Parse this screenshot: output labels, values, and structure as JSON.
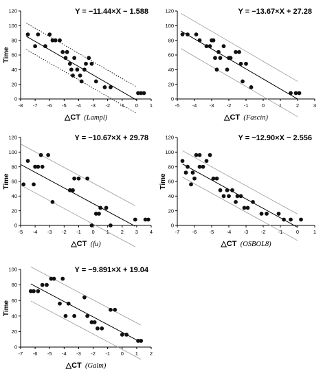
{
  "chart_data": [
    {
      "type": "scatter",
      "equation": "Y = −11.44×X − 1.588",
      "ylabel": "Time",
      "xlabel_prefix": "△CT",
      "xlabel_gene": "Lampl",
      "xlim": [
        -8,
        1
      ],
      "ylim": [
        0,
        120
      ],
      "xticks": [
        -8,
        -7,
        -6,
        -5,
        -4,
        -3,
        -2,
        -1,
        0,
        1
      ],
      "yticks": [
        0,
        20,
        40,
        60,
        80,
        100,
        120
      ],
      "band": "dotted",
      "points": [
        [
          -7.5,
          88
        ],
        [
          -7,
          72
        ],
        [
          -6.8,
          88
        ],
        [
          -6.3,
          72
        ],
        [
          -6,
          88
        ],
        [
          -5.8,
          80
        ],
        [
          -5.6,
          80
        ],
        [
          -5.3,
          80
        ],
        [
          -5.1,
          64
        ],
        [
          -4.9,
          56
        ],
        [
          -4.8,
          64
        ],
        [
          -4.6,
          48
        ],
        [
          -4.5,
          40
        ],
        [
          -4.4,
          32
        ],
        [
          -4.3,
          56
        ],
        [
          -4.1,
          40
        ],
        [
          -3.9,
          32
        ],
        [
          -3.8,
          24
        ],
        [
          -3.6,
          40
        ],
        [
          -3.5,
          48
        ],
        [
          -3.3,
          56
        ],
        [
          -3.1,
          48
        ],
        [
          -2.8,
          24
        ],
        [
          -2.2,
          16
        ],
        [
          -1.8,
          16
        ],
        [
          0.1,
          8
        ],
        [
          0.3,
          8
        ],
        [
          0.5,
          8
        ]
      ],
      "line": {
        "slope": -11.44,
        "intercept": -1.588,
        "x": [
          -7.6,
          0
        ]
      },
      "band_offset": 18
    },
    {
      "type": "scatter",
      "equation": "Y = −13.67×X + 27.28",
      "ylabel": "",
      "xlabel_prefix": "△CT",
      "xlabel_gene": "Fascin",
      "xlim": [
        -5,
        3
      ],
      "ylim": [
        0,
        120
      ],
      "xticks": [
        -5,
        -4,
        -3,
        -2,
        -1,
        0,
        1,
        2,
        3
      ],
      "yticks": [
        0,
        20,
        40,
        60,
        80,
        100,
        120
      ],
      "band": "solid",
      "points": [
        [
          -4.7,
          88
        ],
        [
          -4.4,
          88
        ],
        [
          -3.9,
          88
        ],
        [
          -3.7,
          80
        ],
        [
          -3.3,
          72
        ],
        [
          -3.1,
          72
        ],
        [
          -3,
          80
        ],
        [
          -2.9,
          80
        ],
        [
          -2.8,
          56
        ],
        [
          -2.7,
          40
        ],
        [
          -2.6,
          64
        ],
        [
          -2.5,
          56
        ],
        [
          -2.3,
          72
        ],
        [
          -2.1,
          40
        ],
        [
          -2,
          56
        ],
        [
          -1.9,
          56
        ],
        [
          -1.6,
          64
        ],
        [
          -1.4,
          64
        ],
        [
          -1.3,
          48
        ],
        [
          -1.2,
          24
        ],
        [
          -1,
          48
        ],
        [
          -0.7,
          16
        ],
        [
          1.6,
          8
        ],
        [
          1.9,
          8
        ],
        [
          2.1,
          8
        ]
      ],
      "line": {
        "slope": -13.67,
        "intercept": 27.28,
        "x": [
          -4.8,
          2.0
        ]
      },
      "band_offset": 24
    },
    {
      "type": "scatter",
      "equation": "Y = −10.67×X + 29.78",
      "ylabel": "Time",
      "xlabel_prefix": "△CT",
      "xlabel_gene": "fu",
      "xlim": [
        -5,
        4
      ],
      "ylim": [
        0,
        120
      ],
      "xticks": [
        -5,
        -4,
        -3,
        -2,
        -1,
        0,
        1,
        2,
        3,
        4
      ],
      "yticks": [
        0,
        20,
        40,
        60,
        80,
        100,
        120
      ],
      "band": "solid",
      "points": [
        [
          -4.8,
          56
        ],
        [
          -4.5,
          88
        ],
        [
          -4.1,
          56
        ],
        [
          -4,
          80
        ],
        [
          -3.8,
          80
        ],
        [
          -3.6,
          96
        ],
        [
          -3.5,
          80
        ],
        [
          -3.1,
          96
        ],
        [
          -2.8,
          32
        ],
        [
          -1.6,
          48
        ],
        [
          -1.4,
          48
        ],
        [
          -1.3,
          64
        ],
        [
          -1,
          64
        ],
        [
          -0.4,
          64
        ],
        [
          -0.1,
          0
        ],
        [
          0.2,
          16
        ],
        [
          0.4,
          16
        ],
        [
          0.5,
          24
        ],
        [
          0.9,
          24
        ],
        [
          1.2,
          0
        ],
        [
          2.9,
          8
        ],
        [
          3.6,
          8
        ],
        [
          3.8,
          8
        ]
      ],
      "line": {
        "slope": -10.67,
        "intercept": 29.78,
        "x": [
          -5,
          2.9
        ]
      },
      "band_offset": 28
    },
    {
      "type": "scatter",
      "equation": "Y = −12.90×X − 2.556",
      "ylabel": "Time",
      "xlabel_prefix": "△CT",
      "xlabel_gene": "OSBOL8",
      "xlim": [
        -7,
        1
      ],
      "ylim": [
        0,
        120
      ],
      "xticks": [
        -7,
        -6,
        -5,
        -4,
        -3,
        -2,
        -1,
        0,
        1
      ],
      "yticks": [
        0,
        20,
        40,
        60,
        80,
        100,
        120
      ],
      "band": "solid",
      "points": [
        [
          -6.7,
          88
        ],
        [
          -6.5,
          72
        ],
        [
          -6.4,
          80
        ],
        [
          -6.2,
          56
        ],
        [
          -6.1,
          72
        ],
        [
          -6,
          64
        ],
        [
          -5.9,
          96
        ],
        [
          -5.7,
          96
        ],
        [
          -5.7,
          80
        ],
        [
          -5.5,
          80
        ],
        [
          -5.3,
          88
        ],
        [
          -5.1,
          96
        ],
        [
          -4.9,
          64
        ],
        [
          -4.7,
          64
        ],
        [
          -4.5,
          48
        ],
        [
          -4.3,
          40
        ],
        [
          -4.1,
          48
        ],
        [
          -4,
          40
        ],
        [
          -3.8,
          48
        ],
        [
          -3.6,
          32
        ],
        [
          -3.5,
          40
        ],
        [
          -3.3,
          40
        ],
        [
          -3.1,
          24
        ],
        [
          -2.9,
          24
        ],
        [
          -2.6,
          32
        ],
        [
          -2.1,
          16
        ],
        [
          -1.8,
          16
        ],
        [
          -1.1,
          16
        ],
        [
          -0.8,
          8
        ],
        [
          -0.4,
          8
        ],
        [
          0.2,
          8
        ]
      ],
      "line": {
        "slope": -12.9,
        "intercept": -2.556,
        "x": [
          -6.7,
          0
        ]
      },
      "band_offset": 18
    },
    {
      "type": "scatter",
      "equation": "Y = −9.891×X + 19.04",
      "ylabel": "Time",
      "xlabel_prefix": "△CT",
      "xlabel_gene": "Galm",
      "xlim": [
        -7,
        2
      ],
      "ylim": [
        0,
        100
      ],
      "xticks": [
        -7,
        -6,
        -5,
        -4,
        -3,
        -2,
        -1,
        0,
        1,
        2
      ],
      "yticks": [
        0,
        20,
        40,
        60,
        80,
        100
      ],
      "band": "solid",
      "points": [
        [
          -6.3,
          72
        ],
        [
          -6.1,
          72
        ],
        [
          -5.8,
          72
        ],
        [
          -5.5,
          80
        ],
        [
          -5.2,
          80
        ],
        [
          -4.9,
          88
        ],
        [
          -4.7,
          88
        ],
        [
          -4.3,
          56
        ],
        [
          -4.1,
          88
        ],
        [
          -3.9,
          40
        ],
        [
          -3.7,
          56
        ],
        [
          -3.3,
          40
        ],
        [
          -2.6,
          64
        ],
        [
          -2.4,
          40
        ],
        [
          -2.1,
          32
        ],
        [
          -1.9,
          32
        ],
        [
          -1.7,
          24
        ],
        [
          -1.4,
          24
        ],
        [
          -0.8,
          48
        ],
        [
          -0.5,
          48
        ],
        [
          0,
          16
        ],
        [
          0.3,
          16
        ],
        [
          1.1,
          8
        ],
        [
          1.3,
          8
        ]
      ],
      "line": {
        "slope": -9.891,
        "intercept": 19.04,
        "x": [
          -6.3,
          1.3
        ]
      },
      "band_offset": 22
    }
  ]
}
